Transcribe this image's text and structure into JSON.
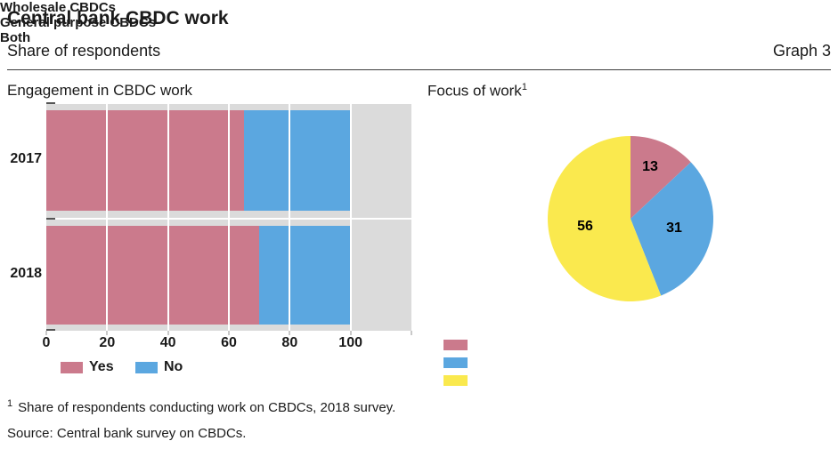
{
  "header": {
    "title": "Central bank CBDC work",
    "subtitle": "Share of respondents",
    "graph_label": "Graph 3"
  },
  "left_panel": {
    "title": "Engagement in CBDC work",
    "legend": [
      {
        "label": "Yes",
        "color": "#CB7A8C"
      },
      {
        "label": "No",
        "color": "#5BA7E0"
      }
    ]
  },
  "right_panel": {
    "title": "Focus of work",
    "title_footnote_marker": "1",
    "legend": [
      {
        "label": "Wholesale CBDCs",
        "color": "#CB7A8C"
      },
      {
        "label": "General purpose CBDCs",
        "color": "#5BA7E0"
      },
      {
        "label": "Both",
        "color": "#FAE94E"
      }
    ]
  },
  "chart_data": [
    {
      "type": "bar",
      "orientation": "horizontal",
      "stacked": true,
      "title": "Engagement in CBDC work",
      "categories": [
        "2017",
        "2018"
      ],
      "series": [
        {
          "name": "Yes",
          "color": "#CB7A8C",
          "values": [
            65,
            70
          ]
        },
        {
          "name": "No",
          "color": "#5BA7E0",
          "values": [
            35,
            30
          ]
        }
      ],
      "xticks": [
        0,
        20,
        40,
        60,
        80,
        100
      ],
      "xlim": [
        0,
        120
      ],
      "grid": true,
      "plot_bg": "#DBDBDB",
      "legend_position": "bottom"
    },
    {
      "type": "pie",
      "title": "Focus of work",
      "labels": [
        "Wholesale CBDCs",
        "General purpose CBDCs",
        "Both"
      ],
      "values": [
        13,
        31,
        56
      ],
      "colors": [
        "#CB7A8C",
        "#5BA7E0",
        "#FAE94E"
      ],
      "start_angle_deg": 0,
      "direction": "clockwise",
      "legend_position": "bottom-left"
    }
  ],
  "footnote": {
    "marker": "1",
    "text": "Share of respondents conducting work on CBDCs, 2018 survey."
  },
  "source": "Source: Central bank survey on CBDCs."
}
